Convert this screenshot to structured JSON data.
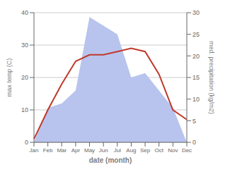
{
  "chart_data": {
    "type": "line",
    "categories": [
      "Jan",
      "Feb",
      "Mar",
      "Apr",
      "May",
      "Jun",
      "Jul",
      "Aug",
      "Sep",
      "Oct",
      "Nov",
      "Dec"
    ],
    "xlabel": "date (month)",
    "ylabel": "max temp (C)",
    "y2label": "med. precipitation (kg/m2)",
    "series": [
      {
        "type": "area",
        "axis": "y2",
        "color": "#b8c4ee",
        "values": [
          0,
          8,
          9,
          12,
          29,
          27,
          25,
          15,
          16,
          12,
          8,
          0
        ]
      },
      {
        "type": "line",
        "axis": "y",
        "color": "#c0392b",
        "values": [
          1,
          10,
          18,
          25,
          27,
          27,
          28,
          29,
          28,
          21,
          10,
          7
        ]
      }
    ],
    "ylim": [
      0,
      40
    ],
    "yticks": [
      0,
      10,
      20,
      30,
      40
    ],
    "y2lim": [
      0,
      30
    ],
    "y2ticks": [
      0,
      5,
      10,
      15,
      20,
      25,
      30
    ],
    "grid": true
  }
}
